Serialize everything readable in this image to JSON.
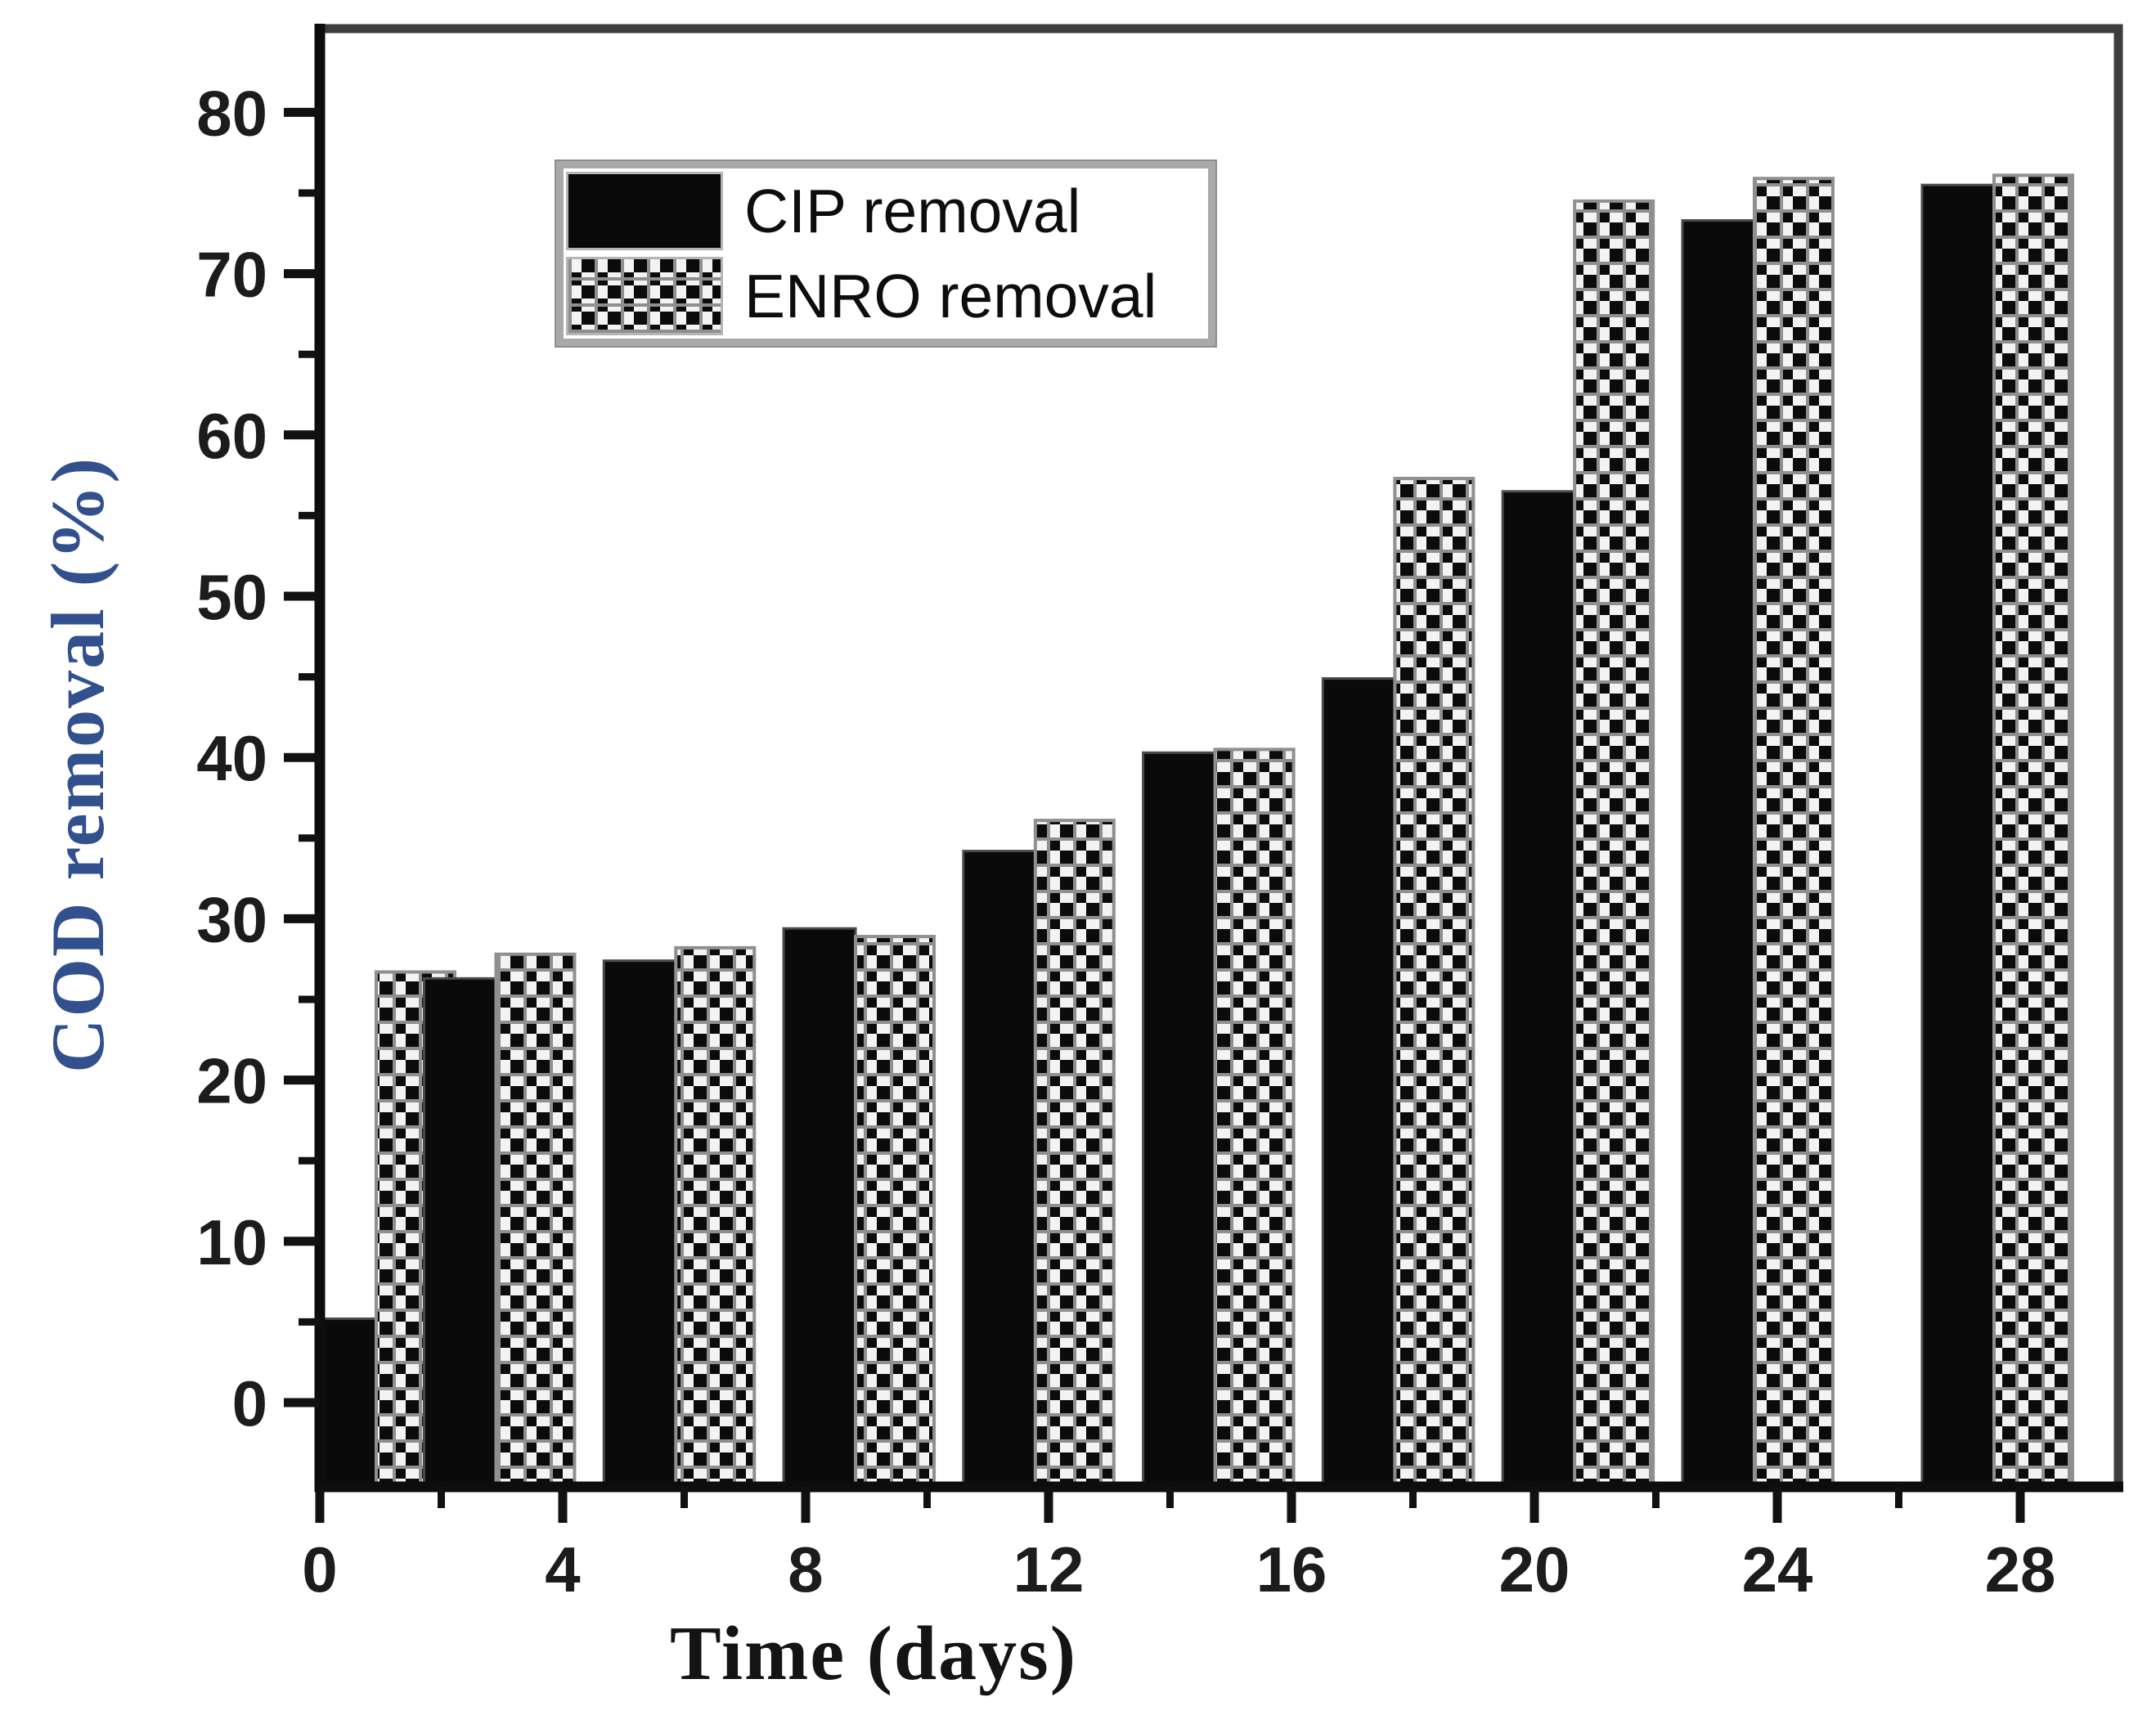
{
  "figure": {
    "background": "#ffffff",
    "y_axis_title": "COD removal (%)",
    "x_axis_title": "Time (days)",
    "y_title_color": "#32508e",
    "x_title_color": "#141414",
    "tick_label_color": "#1c1c1c",
    "axis_color": "#1a1a1a",
    "bar_black_color": "#0a0a0a",
    "checker_gray_color": "#8f8f8f"
  },
  "legend": {
    "items": [
      {
        "label": "CIP removal",
        "swatch": "solid-black-swatch"
      },
      {
        "label": "ENRO removal",
        "swatch": "checkered-swatch"
      }
    ]
  },
  "chart_data": {
    "type": "bar",
    "title": "",
    "xlabel": "Time (days)",
    "ylabel": "COD removal (%)",
    "categories_days": [
      1,
      3,
      6,
      9,
      12,
      15,
      18,
      21,
      24,
      28
    ],
    "series": [
      {
        "name": "CIP removal",
        "pattern": "solid-black",
        "values": [
          5.2,
          26.3,
          27.4,
          29.4,
          34.2,
          40.3,
          44.9,
          56.5,
          73.3,
          75.5
        ]
      },
      {
        "name": "ENRO removal",
        "pattern": "black-white-checkerboard",
        "values": [
          26.7,
          27.8,
          28.2,
          28.9,
          36.1,
          40.5,
          57.3,
          74.5,
          75.9,
          76.1
        ]
      }
    ],
    "ylim": [
      -5.2,
      85.2
    ],
    "xlim": [
      0,
      29.6
    ],
    "y_major_ticks": [
      0,
      10,
      20,
      30,
      40,
      50,
      60,
      70,
      80
    ],
    "y_minor_step": 5,
    "x_major_ticks": [
      0,
      4,
      8,
      12,
      16,
      20,
      24,
      28
    ],
    "x_minor_step": 2,
    "grid": false,
    "legend_position": "upper-left-inside",
    "bars_baseline": "bottom-of-plot (below zero line)"
  }
}
